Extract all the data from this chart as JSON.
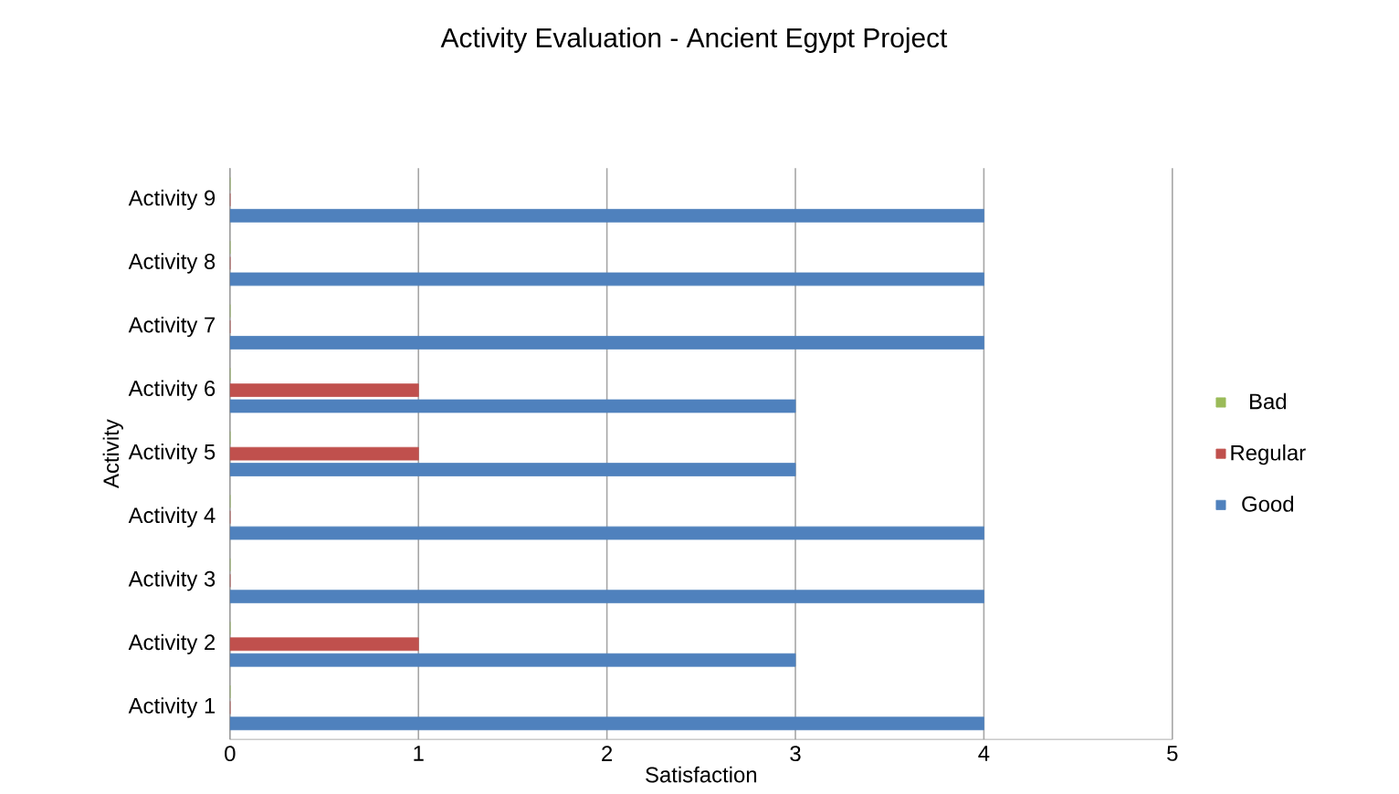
{
  "chart_data": {
    "type": "bar",
    "orientation": "horizontal",
    "title": "Activity Evaluation - Ancient Egypt Project",
    "xlabel": "Satisfaction",
    "ylabel": "Activity",
    "categories": [
      "Activity 9",
      "Activity 8",
      "Activity 7",
      "Activity 6",
      "Activity 5",
      "Activity 4",
      "Activity 3",
      "Activity 2",
      "Activity 1"
    ],
    "series": [
      {
        "name": "Good",
        "color": "#4f81bd",
        "values": [
          4,
          4,
          4,
          3,
          3,
          4,
          4,
          3,
          4
        ]
      },
      {
        "name": "Regular",
        "color": "#c0504d",
        "values": [
          0,
          0,
          0,
          1,
          1,
          0,
          0,
          1,
          0
        ]
      },
      {
        "name": "Bad",
        "color": "#9bbb59",
        "values": [
          0,
          0,
          0,
          0,
          0,
          0,
          0,
          0,
          0
        ]
      }
    ],
    "xlim": [
      0,
      5
    ],
    "xticks": [
      0,
      1,
      2,
      3,
      4,
      5
    ],
    "grid": "x",
    "legend": "right"
  }
}
